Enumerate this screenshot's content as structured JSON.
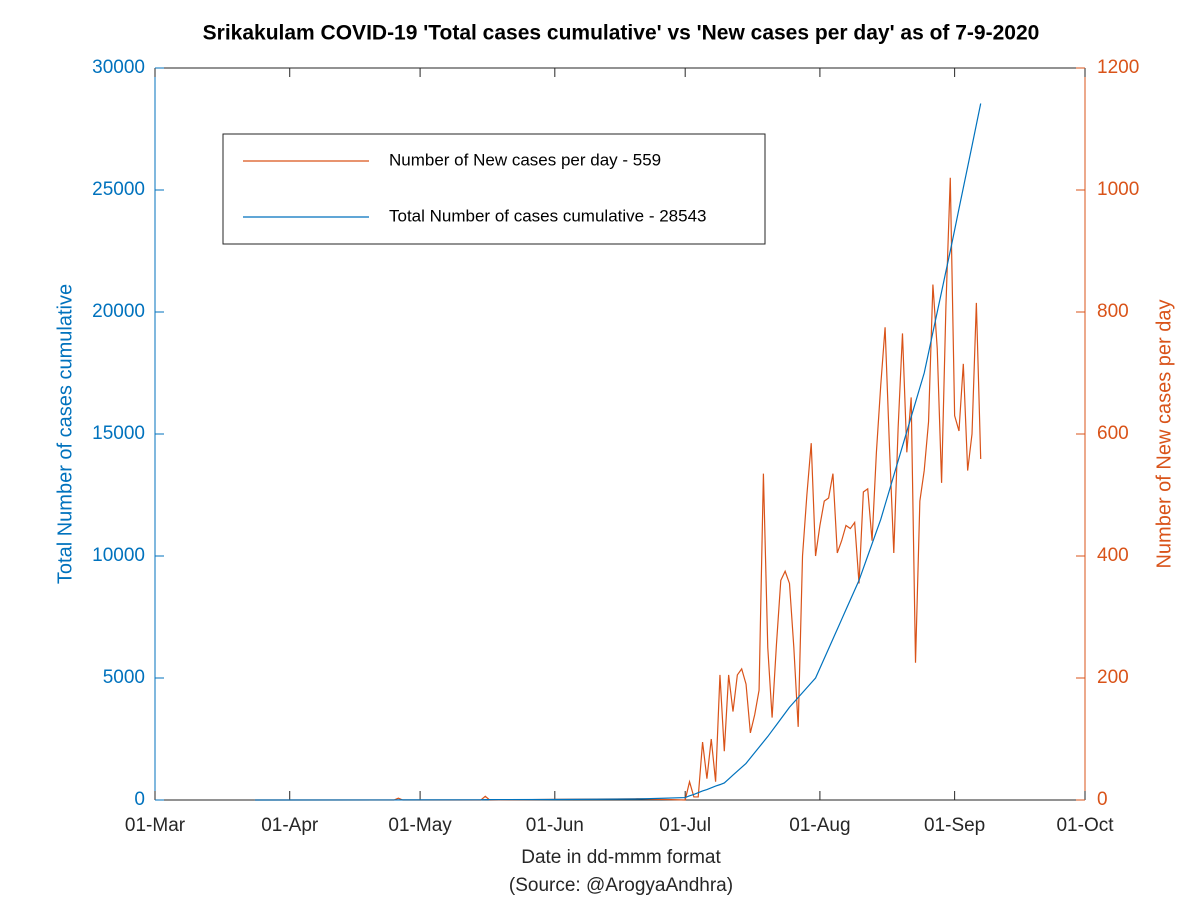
{
  "chart_data": {
    "type": "line",
    "title": "Srikakulam COVID-19 'Total cases cumulative' vs 'New cases per day' as of 7-9-2020",
    "xlabel": "Date in dd-mmm format",
    "source": "(Source: @ArogyaAndhra)",
    "ylabel": "Total Number of cases cumulative",
    "y2label": "Number of New cases per day",
    "legend": "upper left",
    "xlim": [
      "01-Mar",
      "01-Oct"
    ],
    "xticks": [
      "01-Mar",
      "01-Apr",
      "01-May",
      "01-Jun",
      "01-Jul",
      "01-Aug",
      "01-Sep",
      "01-Oct"
    ],
    "ylim": [
      0,
      30000
    ],
    "yticks": [
      0,
      5000,
      10000,
      15000,
      20000,
      25000,
      30000
    ],
    "y2lim": [
      0,
      1200
    ],
    "y2ticks": [
      0,
      200,
      400,
      600,
      800,
      1000,
      1200
    ],
    "x": [
      "24-Mar",
      "25-Apr",
      "26-Apr",
      "27-Apr",
      "15-May",
      "16-May",
      "17-May",
      "01-Jun",
      "20-Jun",
      "01-Jul",
      "02-Jul",
      "03-Jul",
      "04-Jul",
      "05-Jul",
      "06-Jul",
      "07-Jul",
      "08-Jul",
      "09-Jul",
      "10-Jul",
      "11-Jul",
      "12-Jul",
      "13-Jul",
      "14-Jul",
      "15-Jul",
      "16-Jul",
      "17-Jul",
      "18-Jul",
      "19-Jul",
      "20-Jul",
      "21-Jul",
      "22-Jul",
      "23-Jul",
      "24-Jul",
      "25-Jul",
      "26-Jul",
      "27-Jul",
      "28-Jul",
      "29-Jul",
      "30-Jul",
      "31-Jul",
      "01-Aug",
      "02-Aug",
      "03-Aug",
      "04-Aug",
      "05-Aug",
      "06-Aug",
      "07-Aug",
      "08-Aug",
      "09-Aug",
      "10-Aug",
      "11-Aug",
      "12-Aug",
      "13-Aug",
      "14-Aug",
      "15-Aug",
      "16-Aug",
      "17-Aug",
      "18-Aug",
      "19-Aug",
      "20-Aug",
      "21-Aug",
      "22-Aug",
      "23-Aug",
      "24-Aug",
      "25-Aug",
      "26-Aug",
      "27-Aug",
      "28-Aug",
      "29-Aug",
      "30-Aug",
      "31-Aug",
      "01-Sep",
      "02-Sep",
      "03-Sep",
      "04-Sep",
      "05-Sep",
      "06-Sep",
      "07-Sep"
    ],
    "series": [
      {
        "name": "Number of New cases per day - 559",
        "color": "#D95319",
        "axis": "y2",
        "values": [
          0,
          0,
          3,
          0,
          0,
          6,
          0,
          1,
          2,
          0,
          30,
          5,
          5,
          95,
          35,
          100,
          30,
          205,
          80,
          205,
          145,
          205,
          215,
          190,
          110,
          140,
          180,
          535,
          250,
          135,
          255,
          360,
          375,
          355,
          250,
          120,
          400,
          500,
          585,
          400,
          450,
          490,
          495,
          535,
          405,
          425,
          450,
          445,
          455,
          355,
          505,
          510,
          425,
          570,
          680,
          775,
          580,
          405,
          610,
          765,
          570,
          660,
          225,
          490,
          540,
          620,
          845,
          740,
          520,
          810,
          1020,
          630,
          605,
          715,
          540,
          600,
          815,
          559
        ]
      },
      {
        "name": "Total Number of cases cumulative - 28543",
        "color": "#0072BD",
        "values": [
          0,
          3,
          6,
          6,
          10,
          16,
          16,
          20,
          40,
          100,
          170,
          230,
          300,
          370,
          430,
          500,
          570,
          630,
          700,
          860,
          1020,
          1180,
          1340,
          1500,
          1720,
          1940,
          2160,
          2380,
          2600,
          2840,
          3080,
          3320,
          3560,
          3800,
          4000,
          4200,
          4400,
          4600,
          4800,
          5000,
          5400,
          5800,
          6200,
          6600,
          7000,
          7400,
          7800,
          8200,
          8600,
          9000,
          9500,
          10000,
          10500,
          11000,
          11500,
          12100,
          12700,
          13300,
          13900,
          14500,
          15100,
          15700,
          16300,
          16900,
          17500,
          18330,
          19170,
          20000,
          20830,
          21670,
          22500,
          23360,
          24230,
          25090,
          25950,
          26810,
          27680,
          28543
        ]
      }
    ]
  }
}
